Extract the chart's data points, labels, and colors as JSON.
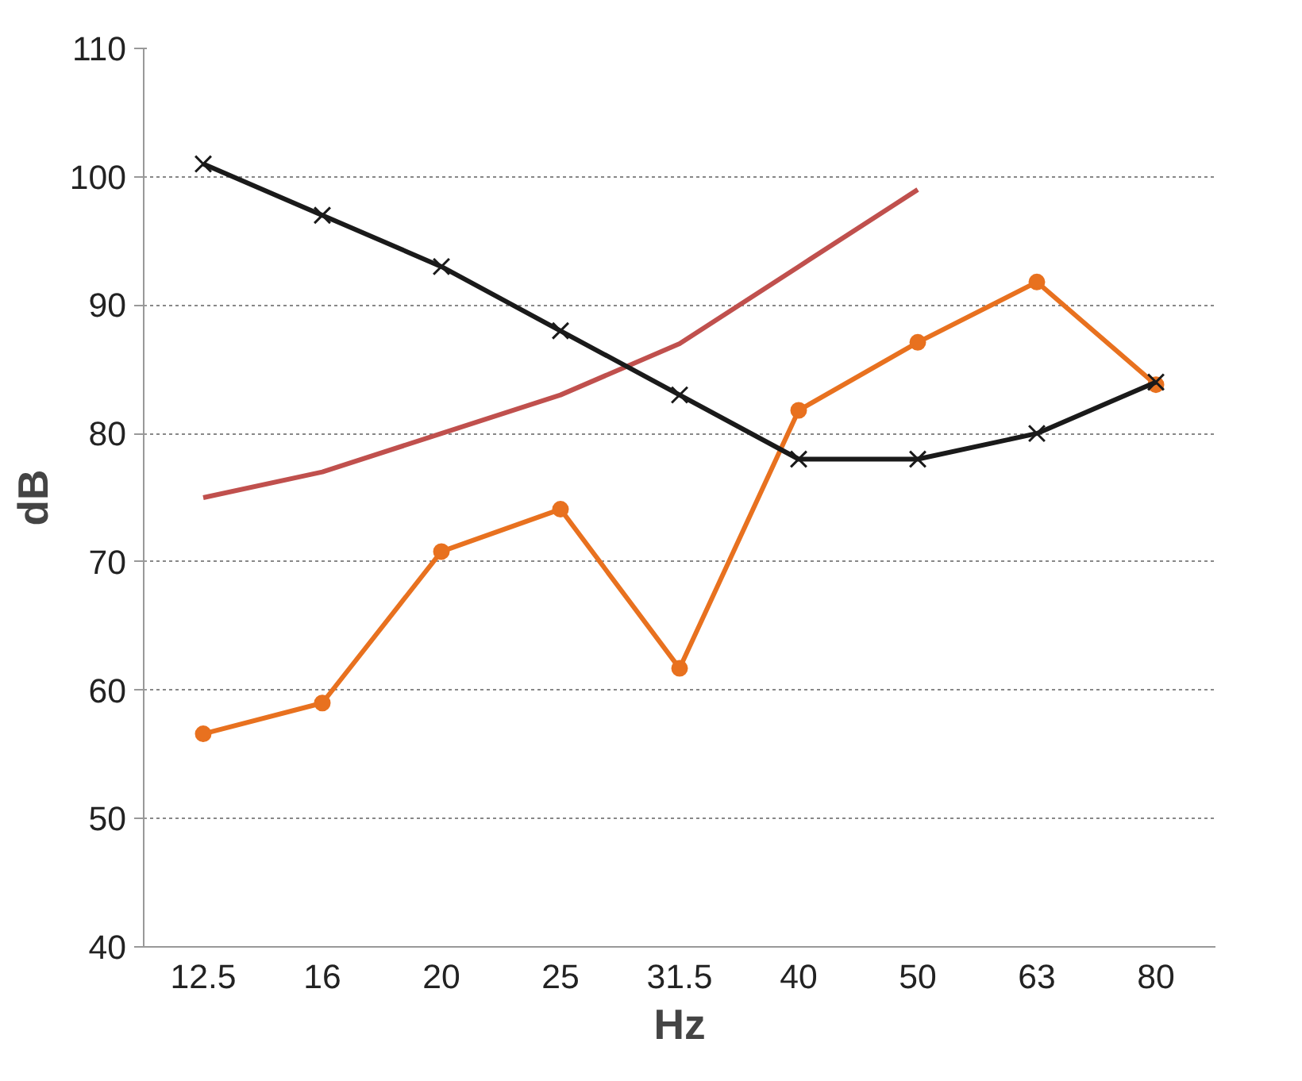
{
  "chart_data": {
    "type": "line",
    "xlabel": "Hz",
    "ylabel": "dB",
    "categories": [
      "12.5",
      "16",
      "20",
      "25",
      "31.5",
      "40",
      "50",
      "63",
      "80"
    ],
    "ylim": [
      40,
      110
    ],
    "yticks": [
      40,
      50,
      60,
      70,
      80,
      90,
      100,
      110
    ],
    "grid": "y",
    "series": [
      {
        "color": "#1a1a1a",
        "marker": "cross",
        "values": [
          101,
          97,
          93,
          88,
          83,
          78,
          78,
          80,
          84
        ]
      },
      {
        "color": "#c0504d",
        "marker": "none",
        "values": [
          75,
          77,
          80,
          83,
          87,
          93,
          99,
          null,
          null
        ]
      },
      {
        "color": "#e8711f",
        "marker": "circle",
        "values": [
          56.6,
          59,
          70.8,
          74.1,
          61.7,
          81.8,
          87.1,
          91.8,
          83.8
        ]
      }
    ]
  }
}
